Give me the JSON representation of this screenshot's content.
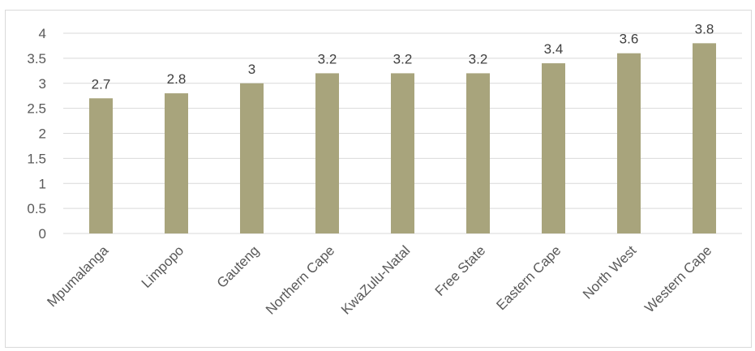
{
  "chart_data": {
    "type": "bar",
    "categories": [
      "Mpumalanga",
      "Limpopo",
      "Gauteng",
      "Northern Cape",
      "KwaZulu-Natal",
      "Free State",
      "Eastern Cape",
      "North West",
      "Western Cape"
    ],
    "values": [
      2.7,
      2.8,
      3,
      3.2,
      3.2,
      3.2,
      3.4,
      3.6,
      3.8
    ],
    "value_labels": [
      "2.7",
      "2.8",
      "3",
      "3.2",
      "3.2",
      "3.2",
      "3.4",
      "3.6",
      "3.8"
    ],
    "y_ticks": [
      "0",
      "0.5",
      "1",
      "1.5",
      "2",
      "2.5",
      "3",
      "3.5",
      "4"
    ],
    "ylim": [
      0,
      4
    ],
    "grid": true,
    "legend": "none",
    "bar_color": "#a8a47c",
    "title": "",
    "xlabel": "",
    "ylabel": ""
  }
}
